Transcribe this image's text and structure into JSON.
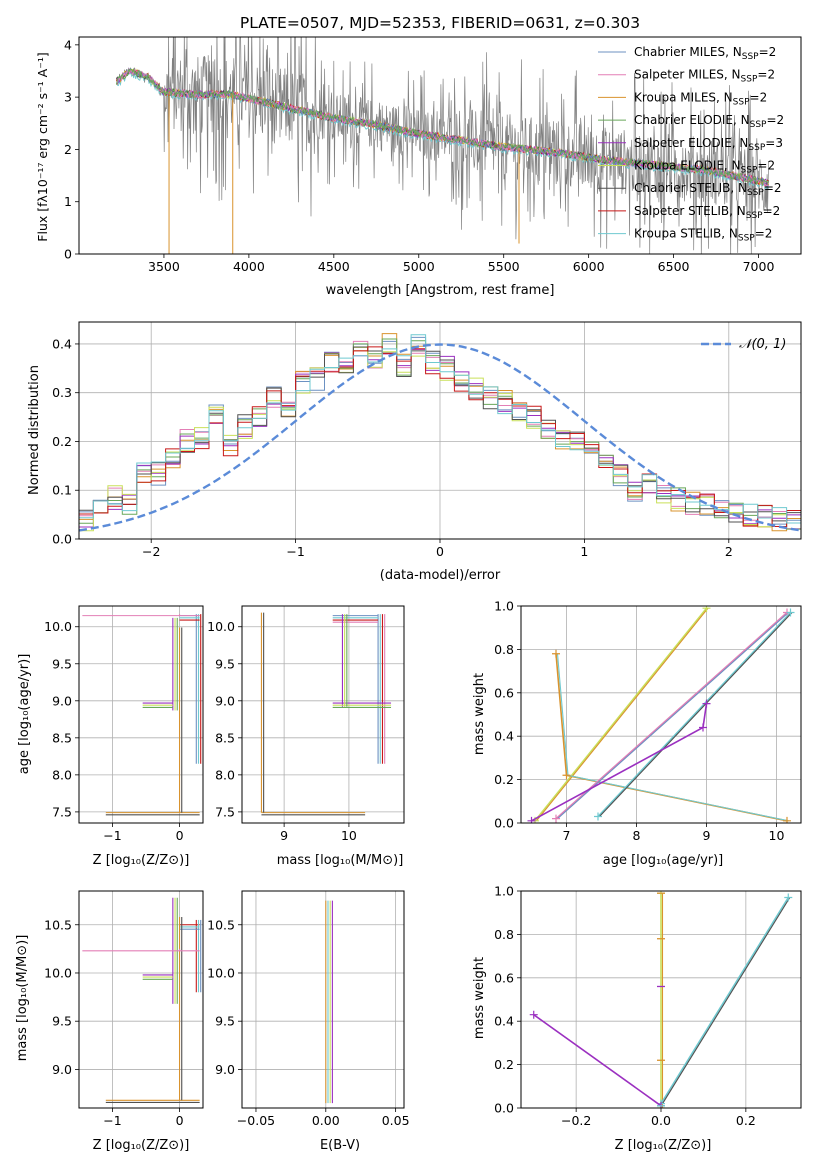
{
  "title": "PLATE=0507, MJD=52353, FIBERID=0631, z=0.303",
  "colors": {
    "data": "#808080",
    "grid": "#b0b0b0",
    "normal_curve": "#5b8bd8",
    "models": [
      "#6c91c2",
      "#e37fb6",
      "#d9932e",
      "#69a85a",
      "#9b30c0",
      "#c9e05a",
      "#505050",
      "#c81818",
      "#6fc9d0"
    ]
  },
  "panels": {
    "spectrum": {
      "xlabel": "wavelength [Angstrom, rest frame]",
      "ylabel": "Flux [fλ10⁻¹⁷ erg cm⁻² s⁻¹ A⁻¹]",
      "xticks": [
        "3500",
        "4000",
        "4500",
        "5000",
        "5500",
        "6000",
        "6500",
        "7000"
      ],
      "yticks": [
        "0",
        "1",
        "2",
        "3",
        "4"
      ]
    },
    "residuals": {
      "xlabel": "(data-model)/error",
      "ylabel": "Normed distribution",
      "legend": "𝒩(0, 1)",
      "xticks": [
        "−2",
        "−1",
        "0",
        "1",
        "2"
      ],
      "yticks": [
        "0.0",
        "0.1",
        "0.2",
        "0.3",
        "0.4"
      ]
    },
    "age_Z": {
      "xlabel": "Z [log₁₀(Z/Z⊙)]",
      "ylabel": "age  [log₁₀(age/yr)]",
      "xticks": [
        "−1",
        "0"
      ],
      "yticks": [
        "7.5",
        "8.0",
        "8.5",
        "9.0",
        "9.5",
        "10.0"
      ]
    },
    "age_mass": {
      "xlabel": "mass [log₁₀(M/M⊙)]",
      "xticks": [
        "9",
        "10"
      ],
      "yticks": [
        "7.5",
        "8.0",
        "8.5",
        "9.0",
        "9.5",
        "10.0"
      ]
    },
    "weight_age": {
      "xlabel": "age  [log₁₀(age/yr)]",
      "ylabel": "mass weight",
      "xticks": [
        "7",
        "8",
        "9",
        "10"
      ],
      "yticks": [
        "0.0",
        "0.2",
        "0.4",
        "0.6",
        "0.8",
        "1.0"
      ]
    },
    "mass_Z": {
      "xlabel": "Z [log₁₀(Z/Z⊙)]",
      "ylabel": "mass [log₁₀(M/M⊙)]",
      "xticks": [
        "−1",
        "0"
      ],
      "yticks": [
        "9.0",
        "9.5",
        "10.0",
        "10.5"
      ]
    },
    "mass_ebv": {
      "xlabel": "E(B-V)",
      "xticks": [
        "−0.05",
        "0.00",
        "0.05"
      ],
      "yticks": [
        "9.0",
        "9.5",
        "10.0",
        "10.5"
      ]
    },
    "weight_Z": {
      "xlabel": "Z [log₁₀(Z/Z⊙)]",
      "ylabel": "mass weight",
      "xticks": [
        "−0.2",
        "0.0",
        "0.2"
      ],
      "yticks": [
        "0.0",
        "0.2",
        "0.4",
        "0.6",
        "0.8",
        "1.0"
      ]
    }
  },
  "chart_data": [
    {
      "type": "line",
      "title": "PLATE=0507, MJD=52353, FIBERID=0631, z=0.303",
      "xlabel": "wavelength [Angstrom, rest frame]",
      "ylabel": "Flux [fλ10⁻¹⁷ erg cm⁻² s⁻¹ A⁻¹]",
      "xlim": [
        3000,
        7250
      ],
      "ylim": [
        0,
        4.15
      ],
      "legend_position": "upper right",
      "legend": [
        "Chabrier MILES, N_SSP=2",
        "Salpeter MILES, N_SSP=2",
        "Kroupa MILES, N_SSP=2",
        "Chabrier ELODIE, N_SSP=2",
        "Salpeter ELODIE, N_SSP=3",
        "Kroupa ELODIE, N_SSP=2",
        "Chabrier STELIB, N_SSP=2",
        "Salpeter STELIB, N_SSP=2",
        "Kroupa STELIB, N_SSP=2"
      ],
      "observed_range": [
        3220,
        7060
      ],
      "model_continuum": {
        "x": [
          3220,
          3300,
          3400,
          3500,
          3700,
          3900,
          4100,
          4300,
          4500,
          4700,
          5000,
          5300,
          5500,
          5800,
          6100,
          6400,
          6700,
          7000,
          7060
        ],
        "y": [
          3.3,
          3.5,
          3.4,
          3.1,
          3.05,
          3.05,
          2.9,
          2.75,
          2.6,
          2.5,
          2.3,
          2.15,
          2.05,
          1.95,
          1.8,
          1.7,
          1.6,
          1.4,
          1.35
        ]
      }
    },
    {
      "type": "step",
      "xlabel": "(data-model)/error",
      "ylabel": "Normed distribution",
      "xlim": [
        -2.5,
        2.5
      ],
      "ylim": [
        0,
        0.445
      ],
      "bins": [
        -2.5,
        2.5,
        50
      ],
      "reference": "N(0,1)",
      "distribution": [
        0.04,
        0.055,
        0.085,
        0.07,
        0.14,
        0.135,
        0.17,
        0.2,
        0.21,
        0.25,
        0.19,
        0.23,
        0.25,
        0.29,
        0.27,
        0.32,
        0.33,
        0.36,
        0.36,
        0.39,
        0.37,
        0.4,
        0.355,
        0.4,
        0.36,
        0.35,
        0.32,
        0.31,
        0.29,
        0.28,
        0.265,
        0.25,
        0.23,
        0.2,
        0.2,
        0.18,
        0.165,
        0.13,
        0.1,
        0.11,
        0.09,
        0.08,
        0.075,
        0.07,
        0.06,
        0.055,
        0.05,
        0.045,
        0.04,
        0.035
      ]
    },
    {
      "type": "errorbar",
      "xlabel": "Z [log₁₀(Z/Z⊙)]",
      "ylabel": "age  [log₁₀(age/yr)]",
      "xlim": [
        -1.5,
        0.35
      ],
      "ylim": [
        7.35,
        10.28
      ],
      "points": [
        {
          "x": 0.25,
          "y": 10.15,
          "xerr": [
            0.25,
            0.05
          ],
          "yerr": [
            2.0,
            0.02
          ]
        },
        {
          "x": -0.1,
          "y": 8.97,
          "xerr": [
            0.45,
            0.0
          ],
          "yerr": [
            0.1,
            1.15
          ]
        },
        {
          "x": 0.0,
          "y": 7.49,
          "xerr": [
            1.1,
            0.3
          ],
          "yerr": [
            0.0,
            2.5
          ]
        },
        {
          "x": 0.0,
          "y": 10.15,
          "xerr": [
            1.45,
            0.3
          ],
          "yerr": [
            0.0,
            0.02
          ]
        }
      ]
    },
    {
      "type": "errorbar",
      "xlabel": "mass [log₁₀(M/M⊙)]",
      "xlim": [
        8.35,
        10.85
      ],
      "ylim": [
        7.35,
        10.28
      ],
      "points": [
        {
          "x": 10.45,
          "y": 10.15,
          "xerr": [
            0.7,
            0.0
          ],
          "yerr": [
            2.0,
            0.02
          ]
        },
        {
          "x": 9.9,
          "y": 8.97,
          "xerr": [
            0.15,
            0.75
          ],
          "yerr": [
            0.05,
            1.2
          ]
        },
        {
          "x": 8.65,
          "y": 7.49,
          "xerr": [
            0.0,
            1.6
          ],
          "yerr": [
            0.0,
            2.7
          ]
        }
      ]
    },
    {
      "type": "line",
      "xlabel": "age  [log₁₀(age/yr)]",
      "ylabel": "mass weight",
      "xlim": [
        6.35,
        10.35
      ],
      "ylim": [
        0,
        1
      ],
      "series": [
        {
          "x": [
            6.55,
            9.0
          ],
          "y": [
            0.01,
            0.99
          ]
        },
        {
          "x": [
            6.85,
            7.0,
            10.15
          ],
          "y": [
            0.78,
            0.22,
            0.01
          ]
        },
        {
          "x": [
            6.85,
            10.15
          ],
          "y": [
            0.02,
            0.97
          ]
        },
        {
          "x": [
            7.45,
            10.2
          ],
          "y": [
            0.03,
            0.97
          ]
        },
        {
          "x": [
            6.5,
            8.95,
            9.0
          ],
          "y": [
            0.01,
            0.44,
            0.55
          ]
        }
      ]
    },
    {
      "type": "errorbar",
      "xlabel": "Z [log₁₀(Z/Z⊙)]",
      "ylabel": "mass [log₁₀(M/M⊙)]",
      "xlim": [
        -1.5,
        0.35
      ],
      "ylim": [
        8.6,
        10.85
      ],
      "points": [
        {
          "x": 0.25,
          "y": 10.5,
          "xerr": [
            0.25,
            0.05
          ],
          "yerr": [
            0.7,
            0.05
          ]
        },
        {
          "x": -0.1,
          "y": 9.98,
          "xerr": [
            0.45,
            0.0
          ],
          "yerr": [
            0.3,
            0.8
          ]
        },
        {
          "x": 0.0,
          "y": 8.68,
          "xerr": [
            1.1,
            0.3
          ],
          "yerr": [
            0.0,
            1.9
          ]
        },
        {
          "x": 0.0,
          "y": 10.23,
          "xerr": [
            1.45,
            0.3
          ],
          "yerr": [
            0.0,
            0.02
          ]
        }
      ]
    },
    {
      "type": "errorbar",
      "xlabel": "E(B-V)",
      "xlim": [
        -0.06,
        0.056
      ],
      "ylim": [
        8.6,
        10.85
      ],
      "points": [
        {
          "x": 0.0,
          "y": 10.0,
          "xerr": [
            0.0,
            0.0
          ],
          "yerr": [
            1.35,
            0.75
          ]
        }
      ]
    },
    {
      "type": "line",
      "xlabel": "Z [log₁₀(Z/Z⊙)]",
      "ylabel": "mass weight",
      "xlim": [
        -0.33,
        0.33
      ],
      "ylim": [
        0,
        1
      ],
      "series": [
        {
          "x": [
            0.0,
            0.0
          ],
          "y": [
            0.0,
            0.99
          ]
        },
        {
          "x": [
            0.0,
            0.3
          ],
          "y": [
            0.02,
            0.97
          ]
        },
        {
          "x": [
            -0.3,
            0.0
          ],
          "y": [
            0.43,
            0.01
          ]
        }
      ],
      "markers_at_zero": [
        0.78,
        0.56,
        0.22,
        0.99,
        0.01
      ]
    }
  ]
}
